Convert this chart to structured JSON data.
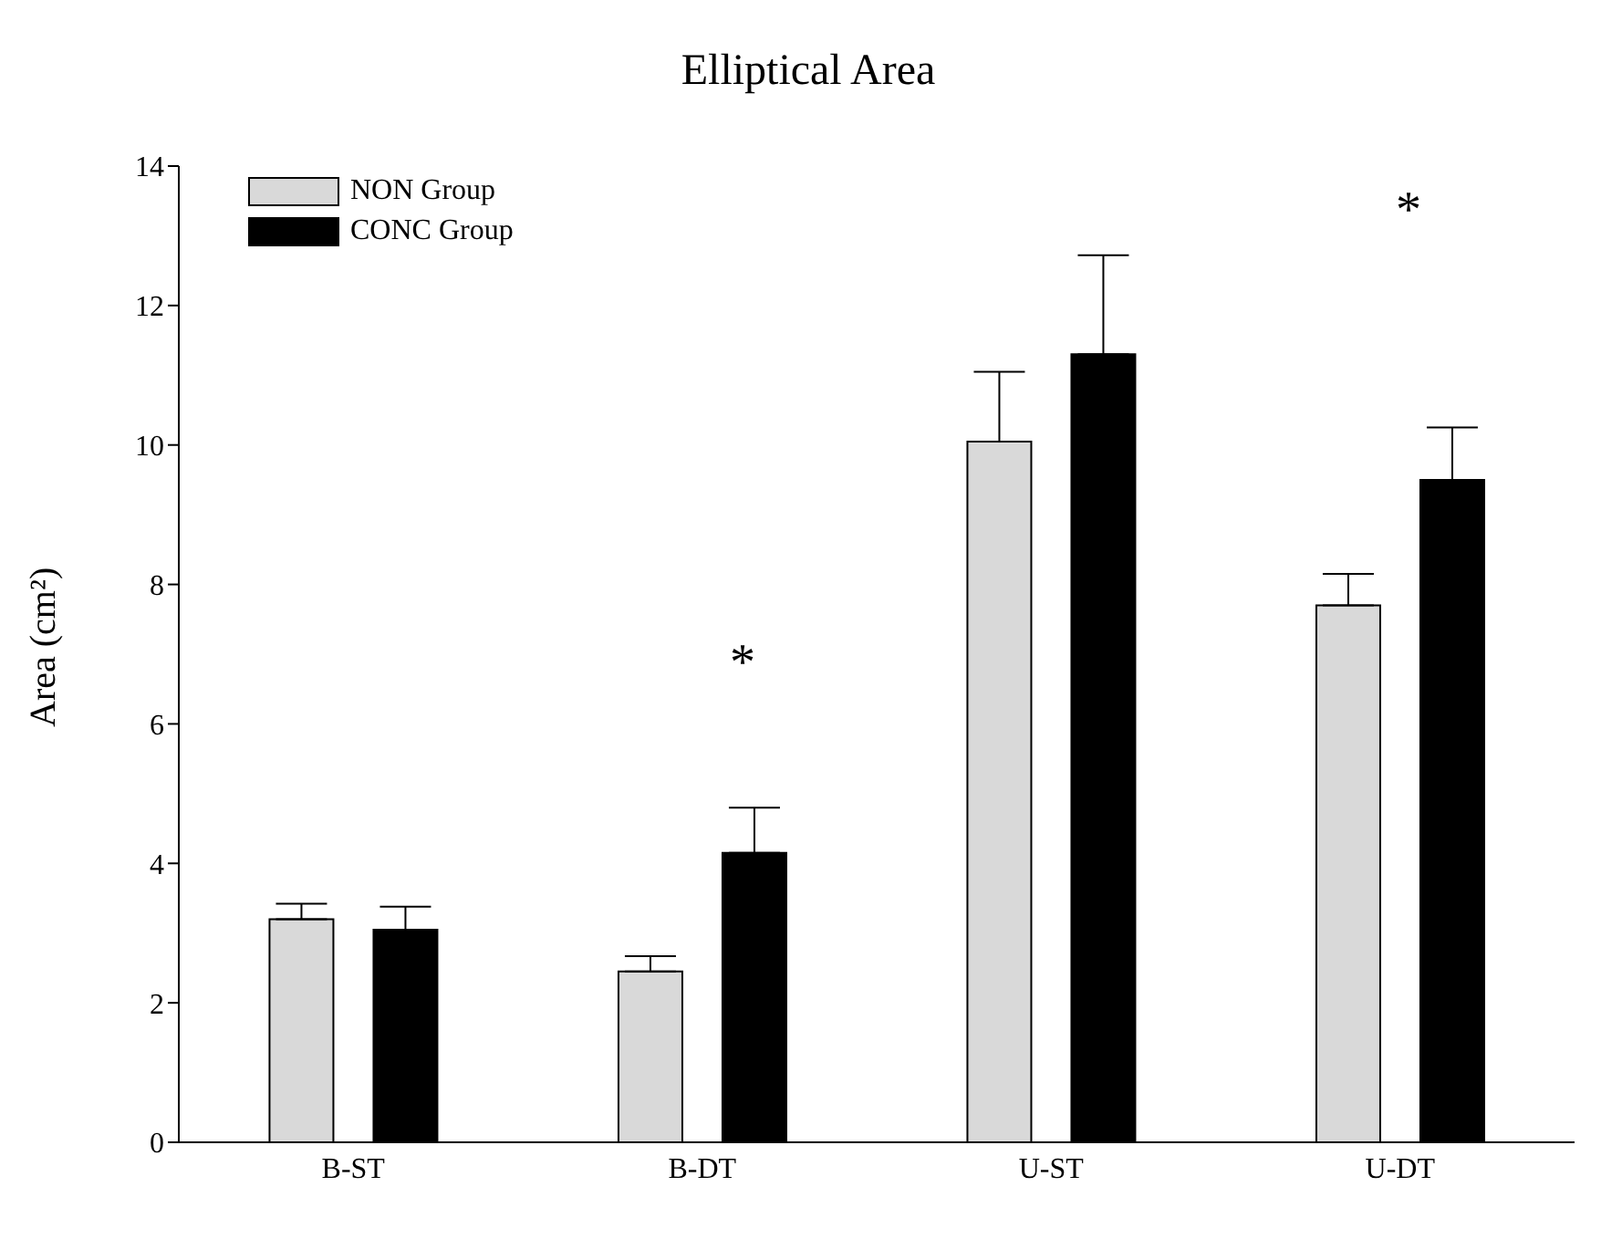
{
  "chart_data": {
    "type": "bar",
    "title": "Elliptical Area",
    "ylabel": "Area (cm²)",
    "categories": [
      "B-ST",
      "B-DT",
      "U-ST",
      "U-DT"
    ],
    "series": [
      {
        "name": "NON Group",
        "color": "#d9d9d9",
        "values": [
          3.2,
          2.45,
          10.05,
          7.7
        ],
        "errors": [
          [
            3.2,
            3.42
          ],
          [
            2.45,
            2.67
          ],
          [
            10.05,
            11.05
          ],
          [
            7.7,
            8.15
          ]
        ]
      },
      {
        "name": "CONC Group",
        "color": "#000000",
        "values": [
          3.05,
          4.15,
          11.3,
          9.5
        ],
        "errors": [
          [
            3.05,
            3.38
          ],
          [
            4.15,
            4.8
          ],
          [
            11.3,
            12.72
          ],
          [
            9.5,
            10.25
          ]
        ]
      }
    ],
    "ylim": [
      0,
      14
    ],
    "yticks": [
      0,
      2,
      4,
      6,
      8,
      10,
      12,
      14
    ],
    "grid": false,
    "legend": "top left",
    "annotations": [
      "*",
      "*"
    ]
  }
}
